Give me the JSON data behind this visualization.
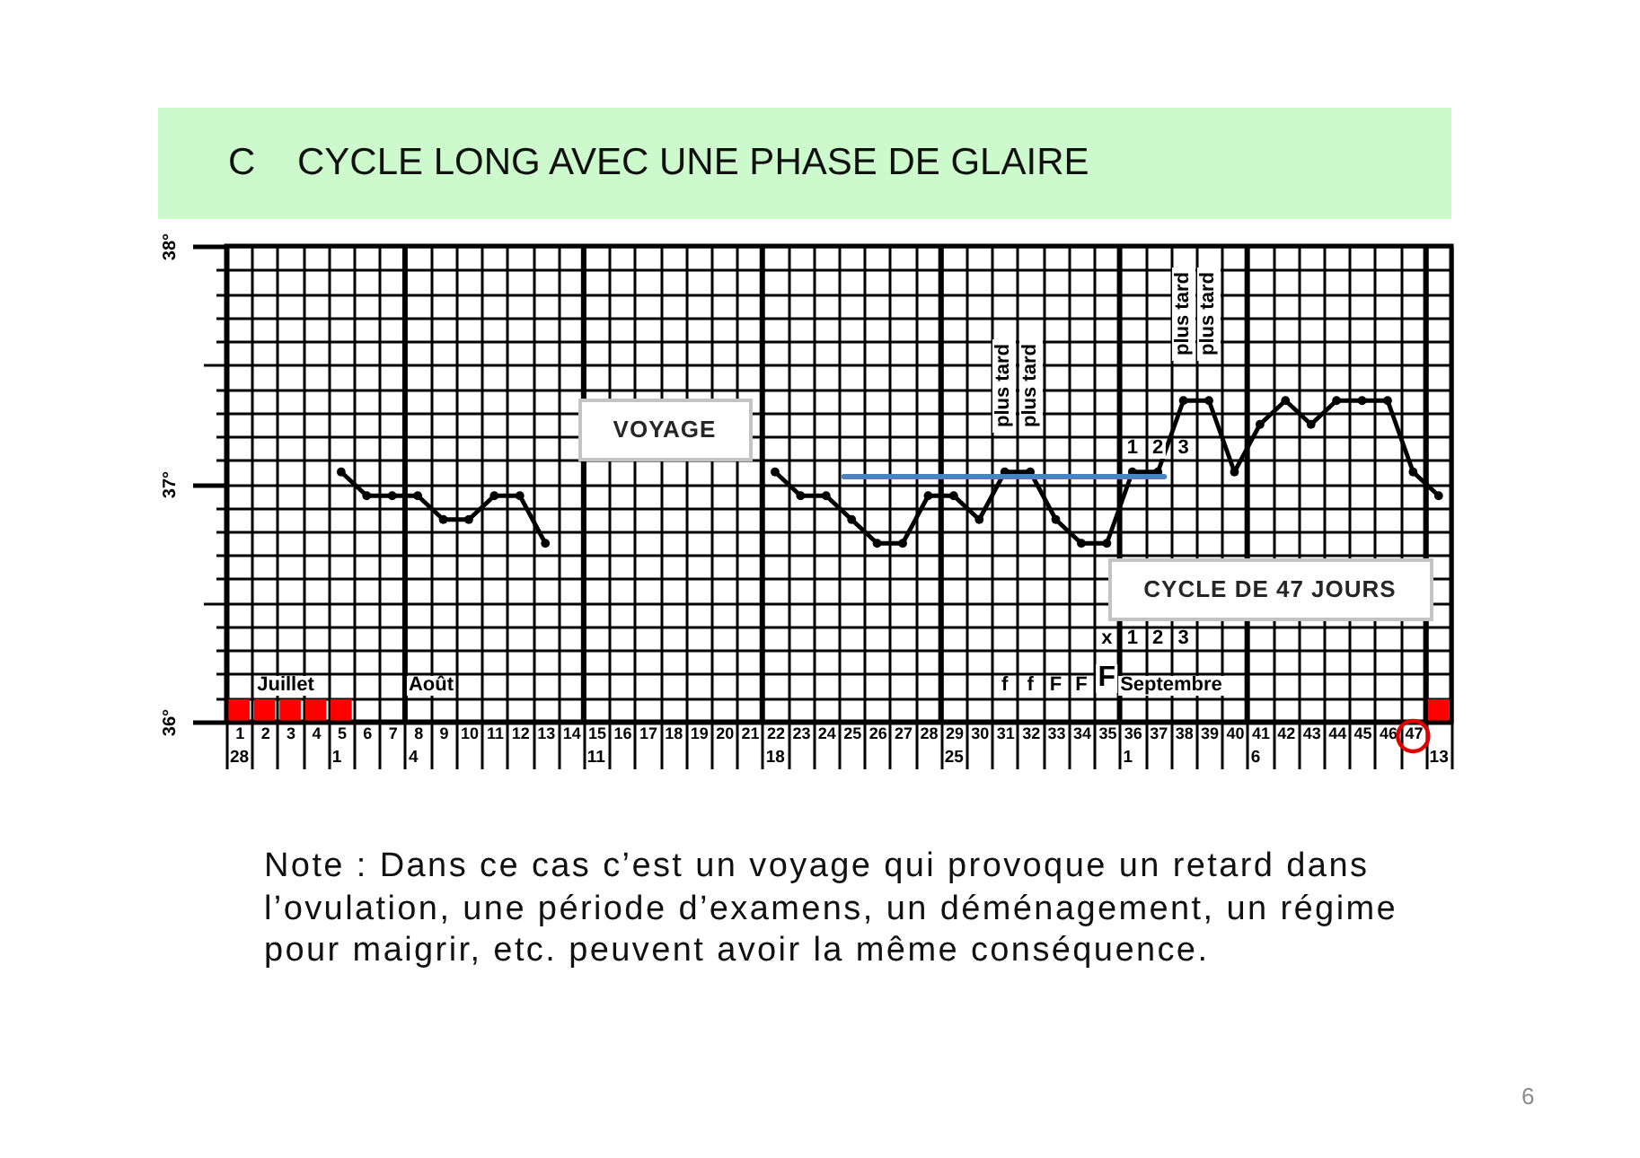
{
  "chart_data": {
    "type": "line",
    "title": "C    CYCLE LONG AVEC UNE PHASE DE GLAIRE",
    "xlim": [
      0.5,
      48.5
    ],
    "xticks": [
      {
        "value": 0.5,
        "label": null
      },
      1,
      {
        "value": 1.5,
        "label": null
      },
      2,
      {
        "value": 2.5,
        "label": null
      },
      3,
      {
        "value": 3.5,
        "label": null
      },
      4,
      {
        "value": 4.5,
        "label": null
      },
      5,
      {
        "value": 5.5,
        "label": null
      },
      6,
      {
        "value": 6.5,
        "label": null
      },
      7,
      {
        "value": 7.5,
        "label": null
      },
      8,
      {
        "value": 8.5,
        "label": null
      },
      9,
      {
        "value": 9.5,
        "label": null
      },
      10,
      {
        "value": 10.5,
        "label": null
      },
      11,
      {
        "value": 11.5,
        "label": null
      },
      12,
      {
        "value": 12.5,
        "label": null
      },
      13,
      {
        "value": 13.5,
        "label": null
      },
      14,
      {
        "value": 14.5,
        "label": null
      },
      15,
      {
        "value": 15.5,
        "label": null
      },
      16,
      {
        "value": 16.5,
        "label": null
      },
      17,
      {
        "value": 17.5,
        "label": null
      },
      18,
      {
        "value": 18.5,
        "label": null
      },
      19,
      {
        "value": 19.5,
        "label": null
      },
      20,
      {
        "value": 20.5,
        "label": null
      },
      21,
      {
        "value": 21.5,
        "label": null
      },
      22,
      {
        "value": 22.5,
        "label": null
      },
      23,
      {
        "value": 23.5,
        "label": null
      },
      24,
      {
        "value": 24.5,
        "label": null
      },
      25,
      {
        "value": 25.5,
        "label": null
      },
      26,
      {
        "value": 26.5,
        "label": null
      },
      27,
      {
        "value": 27.5,
        "label": null
      },
      28,
      {
        "value": 28.5,
        "label": null
      },
      29,
      {
        "value": 29.5,
        "label": null
      },
      30,
      {
        "value": 30.5,
        "label": null
      },
      31,
      {
        "value": 31.5,
        "label": null
      },
      32,
      {
        "value": 32.5,
        "label": null
      },
      33,
      {
        "value": 33.5,
        "label": null
      },
      34,
      {
        "value": 34.5,
        "label": null
      },
      35,
      {
        "value": 35.5,
        "label": null
      },
      36,
      {
        "value": 36.5,
        "label": null
      },
      37,
      {
        "value": 37.5,
        "label": null
      },
      38,
      {
        "value": 38.5,
        "label": null
      },
      39,
      {
        "value": 39.5,
        "label": null
      },
      40,
      {
        "value": 40.5,
        "label": null
      },
      41,
      {
        "value": 41.5,
        "label": null
      },
      42,
      {
        "value": 42.5,
        "label": null
      },
      43,
      {
        "value": 43.5,
        "label": null
      },
      44,
      {
        "value": 44.5,
        "label": null
      },
      45,
      {
        "value": 45.5,
        "label": null
      },
      46,
      {
        "value": 46.5,
        "label": null
      },
      47,
      {
        "value": 47.5,
        "label": null
      },
      {
        "value": 48.5,
        "label": null
      }
    ],
    "ylim": [
      36,
      38
    ],
    "yticks": [
      {
        "value": 36,
        "label": "36°"
      },
      {
        "value": 36.1,
        "label": null
      },
      {
        "value": 36.2,
        "label": null
      },
      {
        "value": 36.3,
        "label": null
      },
      {
        "value": 36.4,
        "label": null
      },
      {
        "value": 36.5,
        "label": null
      },
      {
        "value": 36.6,
        "label": null
      },
      {
        "value": 36.7,
        "label": null
      },
      {
        "value": 36.8,
        "label": null
      },
      {
        "value": 36.9,
        "label": null
      },
      {
        "value": 37,
        "label": "37°"
      },
      {
        "value": 37.1,
        "label": null
      },
      {
        "value": 37.2,
        "label": null
      },
      {
        "value": 37.3,
        "label": null
      },
      {
        "value": 37.4,
        "label": null
      },
      {
        "value": 37.5,
        "label": null
      },
      {
        "value": 37.6,
        "label": null
      },
      {
        "value": 37.7,
        "label": null
      },
      {
        "value": 37.8,
        "label": null
      },
      {
        "value": 37.9,
        "label": null
      },
      {
        "value": 38,
        "label": "38°"
      }
    ],
    "grid": true,
    "marker": "circle",
    "series": [
      {
        "color": "#000000",
        "x": [
          5,
          6,
          7,
          8,
          9,
          10,
          11,
          12,
          13
        ],
        "values": [
          37.05,
          36.95,
          36.95,
          36.95,
          36.85,
          36.85,
          36.95,
          36.95,
          36.75
        ]
      },
      {
        "color": "#000000",
        "x": [
          22,
          23,
          24,
          25,
          26,
          27,
          28,
          29,
          30,
          31,
          32,
          33,
          34,
          35,
          36,
          37,
          38,
          39,
          40,
          41,
          42,
          43,
          44,
          45,
          46,
          47,
          48
        ],
        "values": [
          37.05,
          36.95,
          36.95,
          36.85,
          36.75,
          36.75,
          36.95,
          36.95,
          36.85,
          37.05,
          37.05,
          36.85,
          36.75,
          36.75,
          37.05,
          37.05,
          37.35,
          37.35,
          37.05,
          37.25,
          37.35,
          37.25,
          37.35,
          37.35,
          37.35,
          37.05,
          36.95
        ]
      },
      {
        "type": "line",
        "marker": "none",
        "color": "#4f81bd",
        "x": [
          24.7,
          37.25
        ],
        "values": [
          37.03,
          37.03
        ]
      },
      {
        "type": "scatter",
        "marker": "square",
        "color": "#ff0000",
        "x": [
          1,
          2,
          3,
          4,
          5,
          48
        ],
        "values": [
          36.05,
          36.05,
          36.05,
          36.05,
          36.05,
          36.05
        ]
      }
    ],
    "ref_lines": [
      {
        "axis": "x",
        "value": 7.5,
        "color": "#000000"
      },
      {
        "axis": "x",
        "value": 14.5,
        "color": "#000000"
      },
      {
        "axis": "x",
        "value": 21.5,
        "color": "#000000"
      },
      {
        "axis": "x",
        "value": 28.5,
        "color": "#000000"
      },
      {
        "axis": "x",
        "value": 35.5,
        "color": "#000000"
      },
      {
        "axis": "x",
        "value": 40.5,
        "color": "#000000"
      },
      {
        "axis": "x",
        "value": 47.5,
        "color": "#000000"
      }
    ],
    "annotations": [
      "VOYAGE",
      "CYCLE DE 47 JOURS",
      {
        "text": "plus tard",
        "x": 31,
        "y": 37.05
      },
      {
        "text": "plus tard",
        "x": 32,
        "y": 37.05
      },
      {
        "text": "plus tard",
        "x": 38,
        "y": 37.35
      },
      {
        "text": "plus tard",
        "x": 39,
        "y": 37.35
      },
      "1",
      "2",
      "3",
      "x",
      "1",
      "2",
      "3",
      "f",
      "f",
      "F",
      "F",
      "F",
      "Juillet",
      "Août",
      "Septembre",
      "28",
      "1",
      "4",
      "11",
      "18",
      "25",
      "1",
      "6",
      "13",
      "Note : Dans ce cas c’est un voyage qui provoque un retard dans l’ovulation, une période d’examens, un déménagement, un régime pour maigrir, etc. peuvent avoir la même conséquence.",
      "6"
    ]
  }
}
